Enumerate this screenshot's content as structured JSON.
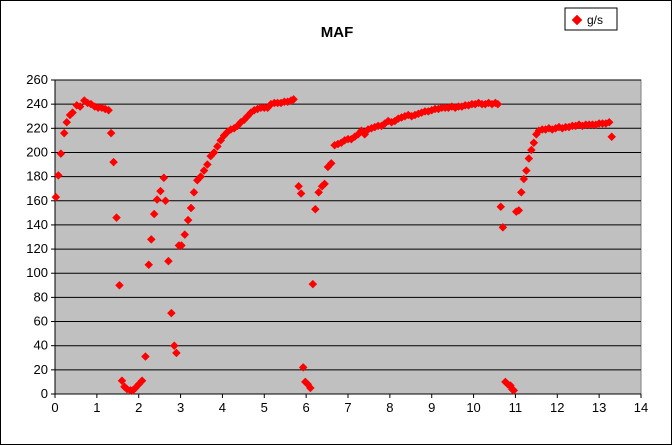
{
  "chart_data": {
    "type": "scatter",
    "title": "MAF",
    "xlabel": "",
    "ylabel": "",
    "xlim": [
      0,
      14
    ],
    "ylim": [
      0,
      260
    ],
    "x_ticks": [
      0,
      1,
      2,
      3,
      4,
      5,
      6,
      7,
      8,
      9,
      10,
      11,
      12,
      13,
      14
    ],
    "y_ticks": [
      0,
      20,
      40,
      60,
      80,
      100,
      120,
      140,
      160,
      180,
      200,
      220,
      240,
      260
    ],
    "grid": "horizontal",
    "legend": "top-right",
    "plot_background": "#C0C0C0",
    "series": [
      {
        "name": "g/s",
        "color": "#FF0000",
        "marker": "diamond",
        "points": [
          [
            0.02,
            163
          ],
          [
            0.08,
            181
          ],
          [
            0.14,
            199
          ],
          [
            0.22,
            216
          ],
          [
            0.28,
            225
          ],
          [
            0.36,
            231
          ],
          [
            0.42,
            233
          ],
          [
            0.52,
            239
          ],
          [
            0.6,
            238
          ],
          [
            0.7,
            243
          ],
          [
            0.78,
            241
          ],
          [
            0.86,
            240
          ],
          [
            0.95,
            238
          ],
          [
            1.03,
            237
          ],
          [
            1.12,
            237
          ],
          [
            1.2,
            236
          ],
          [
            1.28,
            235
          ],
          [
            1.34,
            216
          ],
          [
            1.4,
            192
          ],
          [
            1.47,
            146
          ],
          [
            1.54,
            90
          ],
          [
            1.6,
            11
          ],
          [
            1.66,
            6
          ],
          [
            1.72,
            4
          ],
          [
            1.8,
            3
          ],
          [
            1.86,
            3
          ],
          [
            1.92,
            5
          ],
          [
            2.0,
            8
          ],
          [
            2.08,
            11
          ],
          [
            2.16,
            31
          ],
          [
            2.24,
            107
          ],
          [
            2.3,
            128
          ],
          [
            2.37,
            149
          ],
          [
            2.44,
            161
          ],
          [
            2.52,
            168
          ],
          [
            2.6,
            179
          ],
          [
            2.64,
            160
          ],
          [
            2.71,
            110
          ],
          [
            2.78,
            67
          ],
          [
            2.85,
            40
          ],
          [
            2.9,
            34
          ],
          [
            2.96,
            123
          ],
          [
            3.02,
            123
          ],
          [
            3.1,
            132
          ],
          [
            3.18,
            144
          ],
          [
            3.25,
            154
          ],
          [
            3.32,
            167
          ],
          [
            3.4,
            177
          ],
          [
            3.48,
            180
          ],
          [
            3.56,
            185
          ],
          [
            3.64,
            190
          ],
          [
            3.72,
            197
          ],
          [
            3.8,
            200
          ],
          [
            3.88,
            205
          ],
          [
            3.96,
            210
          ],
          [
            4.04,
            214
          ],
          [
            4.12,
            217
          ],
          [
            4.2,
            219
          ],
          [
            4.28,
            220
          ],
          [
            4.36,
            222
          ],
          [
            4.44,
            225
          ],
          [
            4.52,
            227
          ],
          [
            4.6,
            230
          ],
          [
            4.68,
            233
          ],
          [
            4.76,
            235
          ],
          [
            4.84,
            236
          ],
          [
            4.92,
            237
          ],
          [
            5.0,
            237
          ],
          [
            5.08,
            237
          ],
          [
            5.16,
            240
          ],
          [
            5.24,
            241
          ],
          [
            5.32,
            241
          ],
          [
            5.4,
            241
          ],
          [
            5.48,
            242
          ],
          [
            5.56,
            242
          ],
          [
            5.64,
            243
          ],
          [
            5.7,
            244
          ],
          [
            5.82,
            172
          ],
          [
            5.88,
            166
          ],
          [
            5.93,
            22
          ],
          [
            5.98,
            10
          ],
          [
            6.04,
            8
          ],
          [
            6.1,
            5
          ],
          [
            6.16,
            91
          ],
          [
            6.22,
            153
          ],
          [
            6.3,
            167
          ],
          [
            6.38,
            172
          ],
          [
            6.44,
            174
          ],
          [
            6.52,
            188
          ],
          [
            6.6,
            191
          ],
          [
            6.68,
            206
          ],
          [
            6.76,
            207
          ],
          [
            6.84,
            208
          ],
          [
            6.92,
            210
          ],
          [
            7.0,
            211
          ],
          [
            7.08,
            211
          ],
          [
            7.16,
            213
          ],
          [
            7.24,
            215
          ],
          [
            7.32,
            218
          ],
          [
            7.4,
            215
          ],
          [
            7.48,
            219
          ],
          [
            7.56,
            220
          ],
          [
            7.64,
            221
          ],
          [
            7.72,
            222
          ],
          [
            7.8,
            222
          ],
          [
            7.88,
            224
          ],
          [
            7.96,
            226
          ],
          [
            8.04,
            225
          ],
          [
            8.12,
            226
          ],
          [
            8.2,
            228
          ],
          [
            8.28,
            229
          ],
          [
            8.36,
            230
          ],
          [
            8.44,
            231
          ],
          [
            8.52,
            230
          ],
          [
            8.6,
            231
          ],
          [
            8.68,
            232
          ],
          [
            8.76,
            233
          ],
          [
            8.84,
            234
          ],
          [
            8.92,
            234
          ],
          [
            9.0,
            235
          ],
          [
            9.08,
            236
          ],
          [
            9.16,
            236
          ],
          [
            9.24,
            237
          ],
          [
            9.32,
            237
          ],
          [
            9.4,
            237
          ],
          [
            9.48,
            238
          ],
          [
            9.56,
            237
          ],
          [
            9.64,
            238
          ],
          [
            9.72,
            238
          ],
          [
            9.8,
            239
          ],
          [
            9.88,
            239
          ],
          [
            9.96,
            240
          ],
          [
            10.04,
            240
          ],
          [
            10.12,
            241
          ],
          [
            10.2,
            240
          ],
          [
            10.28,
            240
          ],
          [
            10.36,
            241
          ],
          [
            10.44,
            240
          ],
          [
            10.52,
            241
          ],
          [
            10.58,
            240
          ],
          [
            10.65,
            155
          ],
          [
            10.7,
            138
          ],
          [
            10.76,
            10
          ],
          [
            10.82,
            8
          ],
          [
            10.88,
            7
          ],
          [
            10.92,
            4
          ],
          [
            10.96,
            3
          ],
          [
            11.02,
            151
          ],
          [
            11.08,
            152
          ],
          [
            11.14,
            167
          ],
          [
            11.2,
            178
          ],
          [
            11.26,
            185
          ],
          [
            11.32,
            195
          ],
          [
            11.38,
            202
          ],
          [
            11.44,
            208
          ],
          [
            11.5,
            215
          ],
          [
            11.56,
            218
          ],
          [
            11.64,
            219
          ],
          [
            11.72,
            219
          ],
          [
            11.8,
            220
          ],
          [
            11.88,
            219
          ],
          [
            11.96,
            220
          ],
          [
            12.04,
            221
          ],
          [
            12.12,
            220
          ],
          [
            12.2,
            221
          ],
          [
            12.28,
            221
          ],
          [
            12.36,
            222
          ],
          [
            12.44,
            222
          ],
          [
            12.52,
            223
          ],
          [
            12.6,
            222
          ],
          [
            12.68,
            223
          ],
          [
            12.76,
            223
          ],
          [
            12.84,
            223
          ],
          [
            12.92,
            223
          ],
          [
            13.0,
            224
          ],
          [
            13.08,
            224
          ],
          [
            13.16,
            224
          ],
          [
            13.24,
            225
          ],
          [
            13.3,
            213
          ]
        ]
      }
    ]
  }
}
